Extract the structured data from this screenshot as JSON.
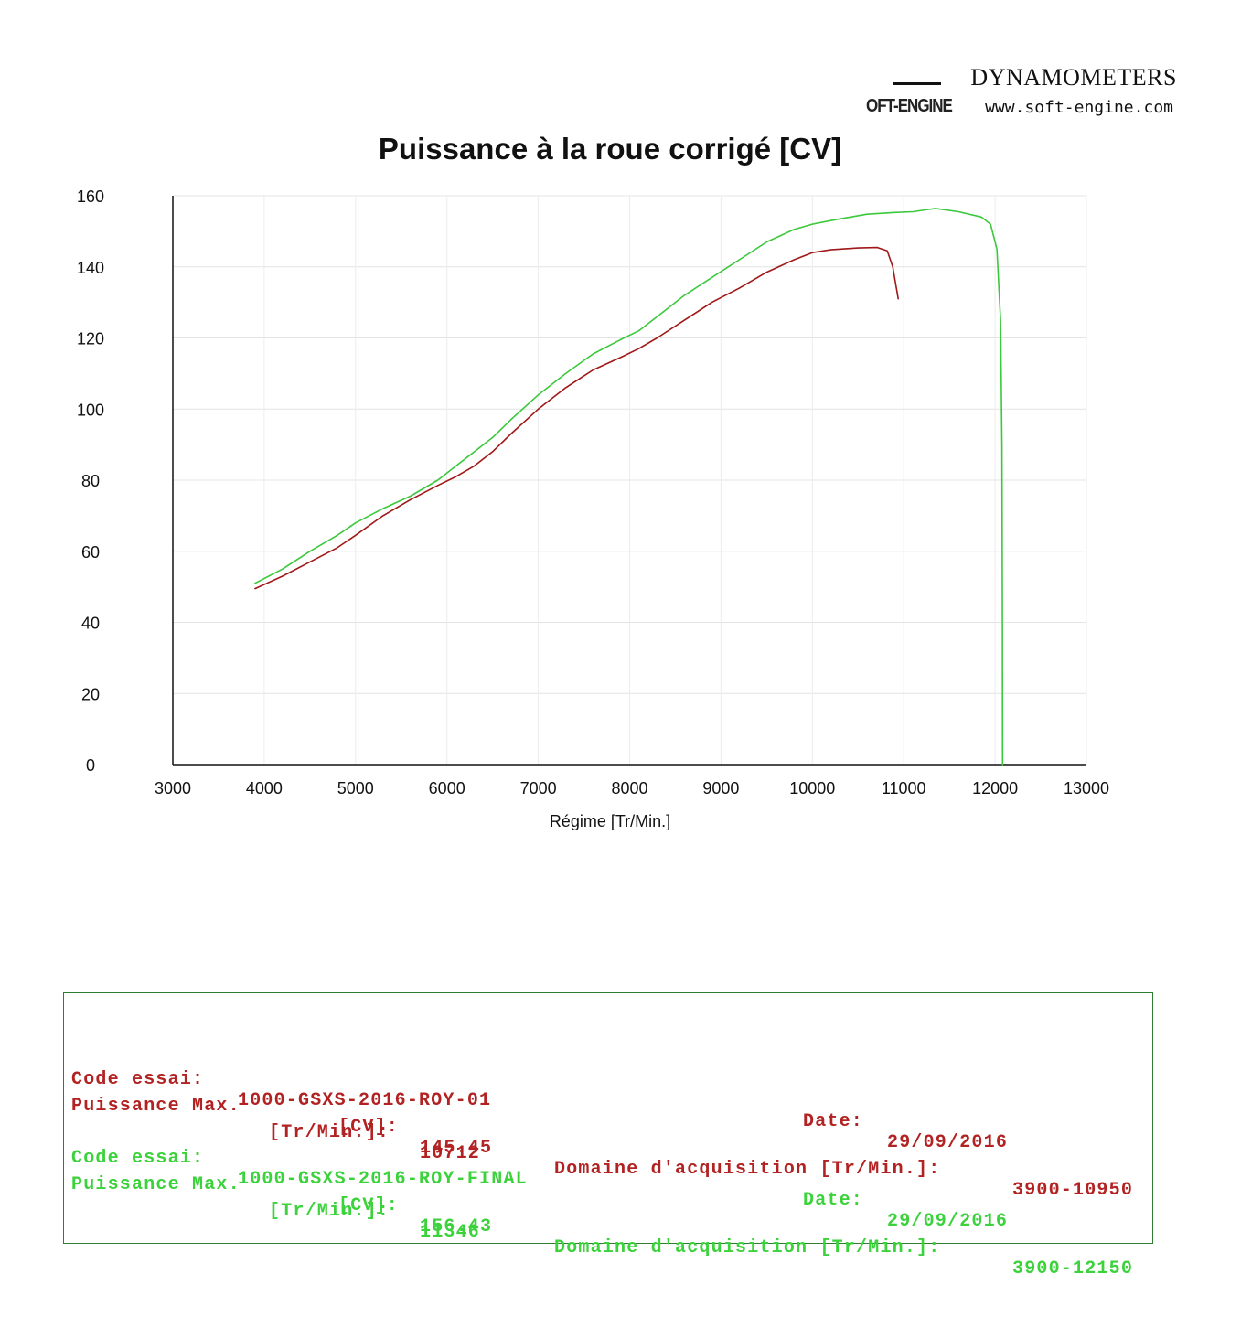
{
  "brand": {
    "name": "DYNAMOMETERS",
    "logo_text": "OFT-ENGINE",
    "url": "www.soft-engine.com"
  },
  "chart_data": {
    "type": "line",
    "title": "Puissance à la roue corrigé [CV]",
    "xlabel": "Régime [Tr/Min.]",
    "ylabel": "",
    "xlim": [
      3000,
      13000
    ],
    "ylim": [
      0,
      160
    ],
    "x_ticks": [
      3000,
      4000,
      5000,
      6000,
      7000,
      8000,
      9000,
      10000,
      11000,
      12000,
      13000
    ],
    "y_ticks": [
      0,
      20,
      40,
      60,
      80,
      100,
      120,
      140,
      160
    ],
    "grid": true,
    "series": [
      {
        "name": "1000-GSXS-2016-ROY-01",
        "color": "#a01818",
        "points": [
          [
            3900,
            49.5
          ],
          [
            4200,
            53
          ],
          [
            4500,
            57
          ],
          [
            4800,
            61
          ],
          [
            5000,
            64.5
          ],
          [
            5300,
            70
          ],
          [
            5600,
            74.5
          ],
          [
            5900,
            78.5
          ],
          [
            6100,
            81
          ],
          [
            6300,
            84
          ],
          [
            6500,
            88
          ],
          [
            6700,
            93
          ],
          [
            7000,
            100
          ],
          [
            7300,
            106
          ],
          [
            7600,
            111
          ],
          [
            7900,
            114.5
          ],
          [
            8100,
            117
          ],
          [
            8300,
            120
          ],
          [
            8600,
            125
          ],
          [
            8900,
            130
          ],
          [
            9200,
            134
          ],
          [
            9500,
            138.5
          ],
          [
            9800,
            142
          ],
          [
            10000,
            144
          ],
          [
            10200,
            144.8
          ],
          [
            10500,
            145.3
          ],
          [
            10712,
            145.45
          ],
          [
            10820,
            144.5
          ],
          [
            10880,
            140
          ],
          [
            10920,
            134
          ],
          [
            10940,
            131
          ]
        ]
      },
      {
        "name": "1000-GSXS-2016-ROY-FINAL",
        "color": "#3cc83c",
        "points": [
          [
            3900,
            51
          ],
          [
            4200,
            55
          ],
          [
            4500,
            60
          ],
          [
            4800,
            64.5
          ],
          [
            5000,
            68
          ],
          [
            5300,
            72
          ],
          [
            5600,
            75.5
          ],
          [
            5900,
            80
          ],
          [
            6100,
            84
          ],
          [
            6300,
            88
          ],
          [
            6500,
            92
          ],
          [
            6700,
            97
          ],
          [
            7000,
            104
          ],
          [
            7300,
            110
          ],
          [
            7600,
            115.5
          ],
          [
            7900,
            119.5
          ],
          [
            8100,
            122
          ],
          [
            8300,
            126
          ],
          [
            8600,
            132
          ],
          [
            8900,
            137
          ],
          [
            9200,
            142
          ],
          [
            9500,
            147
          ],
          [
            9800,
            150.5
          ],
          [
            10000,
            152
          ],
          [
            10300,
            153.5
          ],
          [
            10600,
            154.8
          ],
          [
            10900,
            155.3
          ],
          [
            11100,
            155.5
          ],
          [
            11346,
            156.43
          ],
          [
            11600,
            155.5
          ],
          [
            11850,
            154
          ],
          [
            11950,
            152
          ],
          [
            12020,
            145
          ],
          [
            12060,
            125
          ],
          [
            12075,
            90
          ],
          [
            12080,
            40
          ],
          [
            12082,
            0
          ]
        ]
      }
    ]
  },
  "runs": [
    {
      "code_label": "Code essai:",
      "code_value": "1000-GSXS-2016-ROY-01",
      "date_label": "Date:",
      "date_value": "29/09/2016",
      "pmax_label": "Puissance Max.",
      "cv_label": "[CV]:",
      "cv_value": "145.45",
      "domaine_label": "Domaine d'acquisition [Tr/Min.]:",
      "domaine_value": "3900-10950",
      "rpm_label": "[Tr/Min.]:",
      "rpm_value": "10712"
    },
    {
      "code_label": "Code essai:",
      "code_value": "1000-GSXS-2016-ROY-FINAL",
      "date_label": "Date:",
      "date_value": "29/09/2016",
      "pmax_label": "Puissance Max.",
      "cv_label": "[CV]:",
      "cv_value": "156.43",
      "domaine_label": "Domaine d'acquisition [Tr/Min.]:",
      "domaine_value": "3900-12150",
      "rpm_label": "[Tr/Min.]:",
      "rpm_value": "11346"
    }
  ]
}
